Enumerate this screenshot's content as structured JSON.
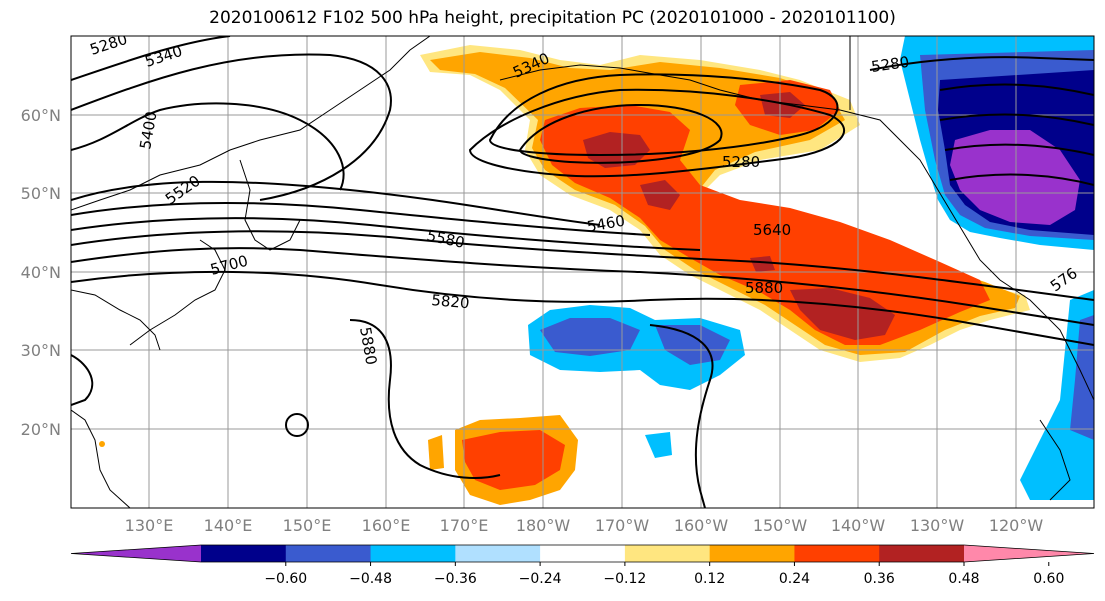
{
  "title": "2020100612 F102 500 hPa height, precipitation PC (2020101000 - 2020101100)",
  "lat_labels": [
    "60°N",
    "50°N",
    "40°N",
    "30°N",
    "20°N"
  ],
  "lon_labels": [
    "130°E",
    "140°E",
    "150°E",
    "160°E",
    "170°E",
    "180°W",
    "170°W",
    "160°W",
    "150°W",
    "140°W",
    "130°W",
    "120°W"
  ],
  "contour_labels": [
    "5280",
    "5340",
    "5400",
    "5520",
    "5700",
    "5340",
    "5280",
    "5280",
    "5460",
    "5580",
    "5640",
    "5820",
    "5880",
    "5880",
    "576"
  ],
  "colorbar": {
    "ticks": [
      "−0.60",
      "−0.48",
      "−0.36",
      "−0.24",
      "−0.12",
      "0.12",
      "0.24",
      "0.36",
      "0.48",
      "0.60"
    ],
    "colors": [
      "#9932cc",
      "#00008b",
      "#3a5bcf",
      "#00bfff",
      "#b0e0ff",
      "#ffffff",
      "#ffe680",
      "#ffa500",
      "#ff4000",
      "#b22222",
      "#ff88aa"
    ]
  }
}
